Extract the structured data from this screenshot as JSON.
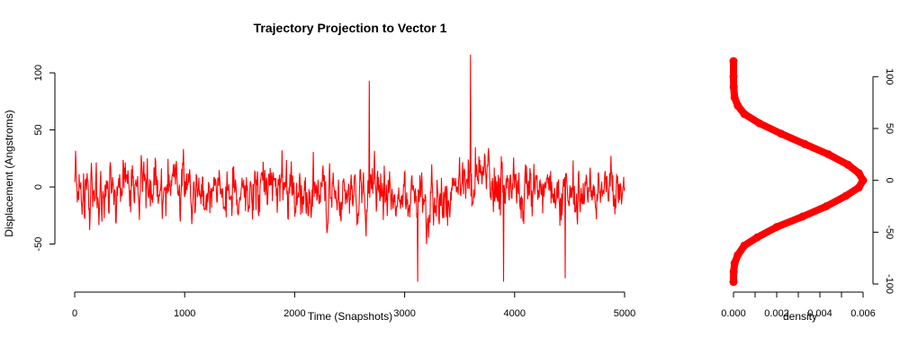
{
  "chart_data": [
    {
      "type": "line",
      "title": "Trajectory Projection to Vector 1",
      "xlabel": "Time (Snapshots)",
      "ylabel": "Displacement (Angstroms)",
      "xlim": [
        0,
        5000
      ],
      "ylim": [
        -85,
        115
      ],
      "x_ticks": [
        0,
        1000,
        2000,
        3000,
        4000,
        5000
      ],
      "y_ticks": [
        -50,
        0,
        50,
        100
      ],
      "grid": false,
      "color": "#ff0000",
      "series": [
        {
          "x_range": [
            0,
            5000
          ],
          "n_points": 5000,
          "summary": {
            "mean": 0,
            "min": -83,
            "max": 116,
            "typical_range": [
              -60,
              70
            ]
          },
          "notable_points": [
            {
              "x": 3600,
              "y": 116
            },
            {
              "x": 2680,
              "y": 93
            },
            {
              "x": 3120,
              "y": -83
            },
            {
              "x": 3900,
              "y": -83
            },
            {
              "x": 4460,
              "y": -80
            }
          ]
        }
      ]
    },
    {
      "type": "line",
      "xlabel": "density",
      "ylabel": "",
      "xlim": [
        0,
        0.006
      ],
      "ylim": [
        -100,
        115
      ],
      "x_ticks": [
        "0.000",
        "0.002",
        "0.004",
        "0.006"
      ],
      "x_minor_ticks": [
        0.001,
        0.003,
        0.005
      ],
      "y_ticks": [
        -100,
        -50,
        0,
        50,
        100
      ],
      "grid": false,
      "color": "#ff0000",
      "series": [
        {
          "x": [
            0.0,
            0.0,
            1e-05,
            5e-05,
            0.0002,
            0.0005,
            0.0012,
            0.0022,
            0.0033,
            0.0044,
            0.0053,
            0.0058,
            0.006,
            0.0058,
            0.0052,
            0.0043,
            0.0032,
            0.002,
            0.0011,
            0.0005,
            0.0002,
            5e-05,
            1e-05,
            0.0
          ],
          "y": [
            115,
            100,
            90,
            80,
            72,
            64,
            55,
            45,
            35,
            25,
            15,
            7,
            0,
            -7,
            -15,
            -25,
            -35,
            -45,
            -55,
            -63,
            -72,
            -80,
            -88,
            -98
          ]
        }
      ]
    }
  ]
}
